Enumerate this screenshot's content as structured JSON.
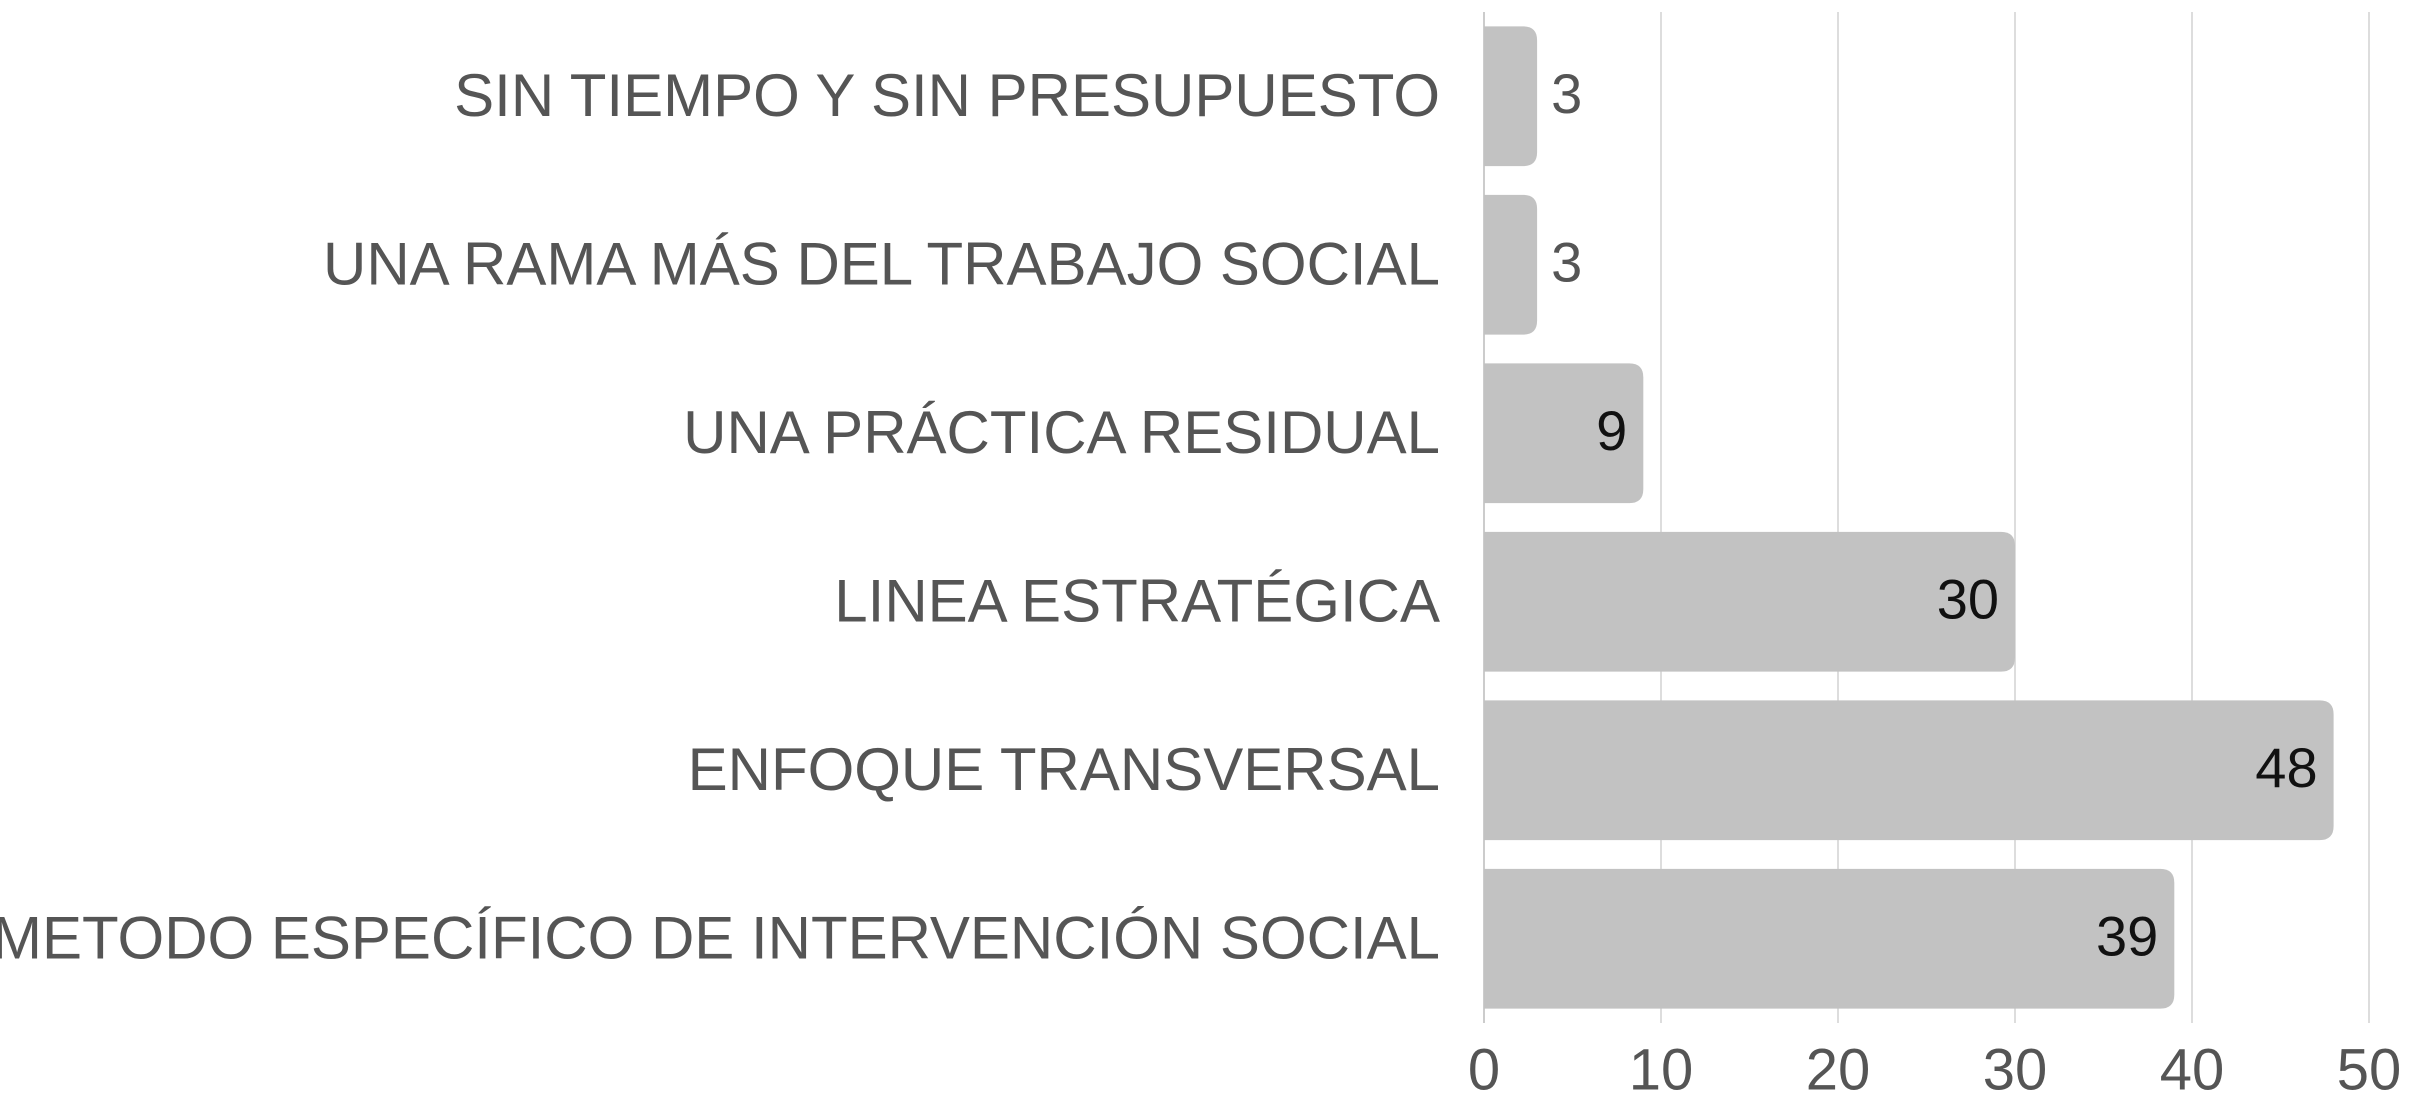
{
  "chart_data": {
    "type": "bar",
    "orientation": "horizontal",
    "categories": [
      "SIN TIEMPO Y SIN PRESUPUESTO",
      "UNA RAMA MÁS DEL TRABAJO SOCIAL",
      "UNA PRÁCTICA RESIDUAL",
      "LINEA ESTRATÉGICA",
      "ENFOQUE TRANSVERSAL",
      "METODO ESPECÍFICO DE INTERVENCIÓN SOCIAL"
    ],
    "values": [
      3,
      3,
      9,
      30,
      48,
      39
    ],
    "color": "#c2c2c2",
    "xlim": [
      0,
      50
    ],
    "xticks": [
      0,
      10,
      20,
      30,
      40,
      50
    ],
    "grid": true
  }
}
